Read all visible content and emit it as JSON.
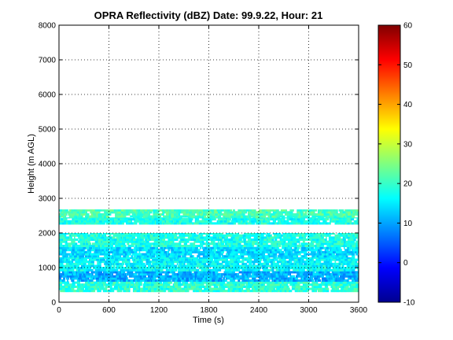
{
  "chart_data": {
    "type": "heatmap",
    "title": "OPRA Reflectivity (dBZ)  Date: 99.9.22, Hour: 21",
    "xlabel": "Time (s)",
    "ylabel": "Height (m AGL)",
    "xlim": [
      0,
      3600
    ],
    "ylim": [
      0,
      8000
    ],
    "x_ticks": [
      0,
      600,
      1200,
      1800,
      2400,
      3000,
      3600
    ],
    "y_ticks": [
      0,
      1000,
      2000,
      3000,
      4000,
      5000,
      6000,
      7000,
      8000
    ],
    "grid": true,
    "grid_style": "dotted",
    "colormap": "jet",
    "colorbar": {
      "range": [
        -10,
        60
      ],
      "ticks": [
        -10,
        0,
        10,
        20,
        30,
        40,
        50,
        60
      ]
    },
    "echo_layers": [
      {
        "base_m": 300,
        "top_m": 600,
        "typical_dbz": 19
      },
      {
        "base_m": 600,
        "top_m": 900,
        "typical_dbz": 11
      },
      {
        "base_m": 900,
        "top_m": 1300,
        "typical_dbz": 16
      },
      {
        "base_m": 1300,
        "top_m": 1600,
        "typical_dbz": 14
      },
      {
        "base_m": 1600,
        "top_m": 2000,
        "typical_dbz": 18
      },
      {
        "base_m": 2250,
        "top_m": 2450,
        "typical_dbz": 18
      },
      {
        "base_m": 2450,
        "top_m": 2680,
        "typical_dbz": 21
      }
    ]
  }
}
